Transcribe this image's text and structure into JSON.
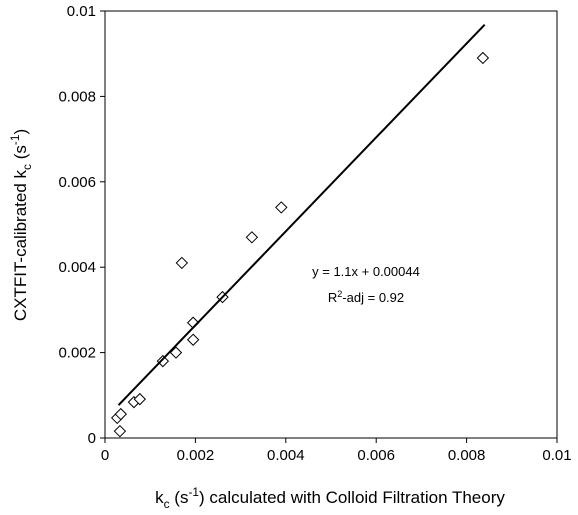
{
  "chart_data": {
    "type": "scatter",
    "x_label": [
      "k",
      "c",
      " (s",
      "-1",
      ") calculated with Colloid Filtration Theory"
    ],
    "y_label": [
      "CXTFIT-calibrated k",
      "c",
      " (s",
      "-1",
      ")"
    ],
    "annotations": [
      [
        "y = 1.1x + 0.00044"
      ],
      [
        "R",
        "2",
        "-adj = 0.92"
      ]
    ],
    "xlim": [
      0,
      0.01
    ],
    "ylim": [
      0,
      0.01
    ],
    "xticks": [
      0,
      0.002,
      0.004,
      0.006,
      0.008,
      0.01
    ],
    "yticks": [
      0,
      0.002,
      0.004,
      0.006,
      0.008,
      0.01
    ],
    "series": [
      {
        "type": "scatter",
        "color": "#000000",
        "x": [
          0.00027,
          0.00035,
          0.00033,
          0.00064,
          0.00077,
          0.00128,
          0.00157,
          0.00195,
          0.00195,
          0.0017,
          0.0026,
          0.00325,
          0.0039,
          0.00836
        ],
        "values": [
          0.00047,
          0.00056,
          0.00016,
          0.00084,
          0.00091,
          0.0018,
          0.002,
          0.0023,
          0.0027,
          0.0041,
          0.0033,
          0.0047,
          0.0054,
          0.0089
        ]
      },
      {
        "type": "line",
        "color": "#000000",
        "x": [
          0.0003,
          0.0084
        ],
        "values": [
          0.00077,
          0.00968
        ]
      }
    ]
  }
}
